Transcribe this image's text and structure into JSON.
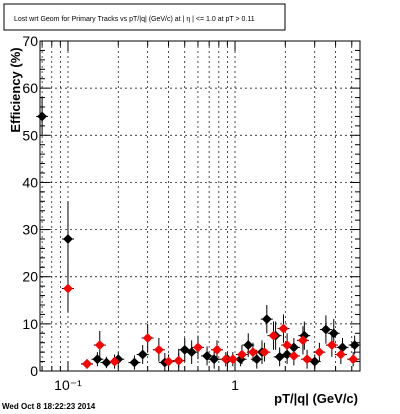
{
  "chart_data": {
    "type": "scatter",
    "title": "Lost wrt Geom for Primary Tracks vs pT/|q| (GeV/c) at |  η  | <= 1.0 at pT > 0.11",
    "xlabel": "pT/|q| (GeV/c)",
    "ylabel": "Efficiency (%)",
    "xscale": "log",
    "xlim": [
      0.068,
      5.6
    ],
    "ylim": [
      0,
      70
    ],
    "yticks": [
      "0",
      "10",
      "20",
      "30",
      "40",
      "50",
      "60",
      "70"
    ],
    "xticks": [
      "10⁻¹",
      "1"
    ],
    "grid": true,
    "series": [
      {
        "color": "#000000",
        "points": [
          {
            "x": 0.07,
            "y": 54,
            "err": 4
          },
          {
            "x": 0.1,
            "y": 28,
            "err": 8
          },
          {
            "x": 0.13,
            "y": 1.5,
            "err": 0.8
          },
          {
            "x": 0.15,
            "y": 2.5,
            "err": 1.5
          },
          {
            "x": 0.17,
            "y": 1.8,
            "err": 1.2
          },
          {
            "x": 0.2,
            "y": 2.5,
            "err": 1.5
          },
          {
            "x": 0.25,
            "y": 1.8,
            "err": 1.5
          },
          {
            "x": 0.28,
            "y": 3.5,
            "err": 2
          },
          {
            "x": 0.38,
            "y": 1.8,
            "err": 2
          },
          {
            "x": 0.46,
            "y": 2.2,
            "err": 2.5
          },
          {
            "x": 0.5,
            "y": 4.5,
            "err": 2.5
          },
          {
            "x": 0.55,
            "y": 4,
            "err": 2.5
          },
          {
            "x": 0.68,
            "y": 3.2,
            "err": 2
          },
          {
            "x": 0.75,
            "y": 2.5,
            "err": 2
          },
          {
            "x": 0.9,
            "y": 2.5,
            "err": 1.5
          },
          {
            "x": 1.08,
            "y": 2.5,
            "err": 1.5
          },
          {
            "x": 1.2,
            "y": 5.5,
            "err": 2.5
          },
          {
            "x": 1.35,
            "y": 2.5,
            "err": 2
          },
          {
            "x": 1.45,
            "y": 4,
            "err": 2.5
          },
          {
            "x": 1.55,
            "y": 11,
            "err": 3
          },
          {
            "x": 1.75,
            "y": 7.5,
            "err": 3
          },
          {
            "x": 1.85,
            "y": 3,
            "err": 2
          },
          {
            "x": 2.05,
            "y": 3.5,
            "err": 2
          },
          {
            "x": 2.25,
            "y": 5,
            "err": 2
          },
          {
            "x": 2.6,
            "y": 7.5,
            "err": 3
          },
          {
            "x": 3,
            "y": 2,
            "err": 1.5
          },
          {
            "x": 3.5,
            "y": 8.8,
            "err": 3
          },
          {
            "x": 3.9,
            "y": 8,
            "err": 3
          },
          {
            "x": 4.4,
            "y": 5,
            "err": 2
          },
          {
            "x": 5.2,
            "y": 5.5,
            "err": 2
          }
        ]
      },
      {
        "color": "#ff0000",
        "points": [
          {
            "x": 0.1,
            "y": 17.5,
            "err": 5
          },
          {
            "x": 0.13,
            "y": 1.5,
            "err": 1
          },
          {
            "x": 0.155,
            "y": 5.5,
            "err": 3
          },
          {
            "x": 0.19,
            "y": 2,
            "err": 1.5
          },
          {
            "x": 0.3,
            "y": 7,
            "err": 3
          },
          {
            "x": 0.35,
            "y": 4.5,
            "err": 2.5
          },
          {
            "x": 0.4,
            "y": 2,
            "err": 1.5
          },
          {
            "x": 0.46,
            "y": 2.2,
            "err": 1.5
          },
          {
            "x": 0.6,
            "y": 5,
            "err": 2.5
          },
          {
            "x": 0.78,
            "y": 4.5,
            "err": 2
          },
          {
            "x": 0.88,
            "y": 2.5,
            "err": 1.5
          },
          {
            "x": 0.97,
            "y": 2.5,
            "err": 1.5
          },
          {
            "x": 1.1,
            "y": 3.5,
            "err": 2
          },
          {
            "x": 1.28,
            "y": 4,
            "err": 2
          },
          {
            "x": 1.5,
            "y": 4,
            "err": 2
          },
          {
            "x": 1.7,
            "y": 7.5,
            "err": 3
          },
          {
            "x": 1.95,
            "y": 9,
            "err": 3
          },
          {
            "x": 2.05,
            "y": 5.5,
            "err": 2.5
          },
          {
            "x": 2.25,
            "y": 3.2,
            "err": 2
          },
          {
            "x": 2.55,
            "y": 6.5,
            "err": 3
          },
          {
            "x": 2.7,
            "y": 2.5,
            "err": 2
          },
          {
            "x": 3.2,
            "y": 4,
            "err": 2
          },
          {
            "x": 3.8,
            "y": 5.5,
            "err": 2.5
          },
          {
            "x": 4.3,
            "y": 3.5,
            "err": 2
          },
          {
            "x": 5.1,
            "y": 2.5,
            "err": 1.5
          }
        ]
      }
    ]
  },
  "footer": {
    "timestamp": "Wed Oct  8 18:22:23 2014"
  }
}
